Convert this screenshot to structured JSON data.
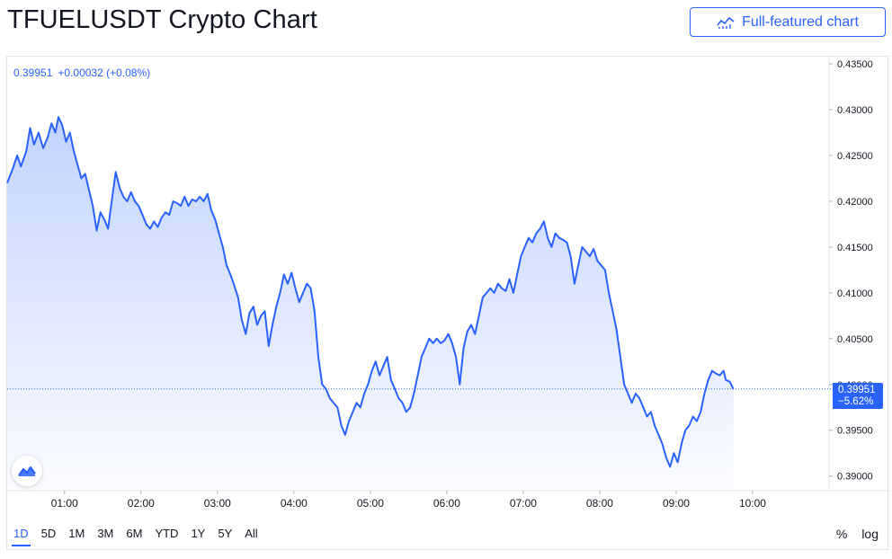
{
  "header": {
    "title": "TFUELUSDT Crypto Chart",
    "full_featured_label": "Full-featured chart"
  },
  "legend": {
    "price": "0.39951",
    "change": "+0.00032 (+0.08%)"
  },
  "price_badge": {
    "price": "0.39951",
    "change": "−5.62%"
  },
  "ranges": [
    "1D",
    "5D",
    "1M",
    "3M",
    "6M",
    "YTD",
    "1Y",
    "5Y",
    "All"
  ],
  "active_range": "1D",
  "controls": {
    "percent": "%",
    "log": "log"
  },
  "colors": {
    "line": "#2962ff",
    "area_top": "#2962ff",
    "text": "#131722",
    "axis_text": "#131722",
    "border": "#e0e3eb"
  },
  "chart_data": {
    "type": "area",
    "x_ticks": [
      "01:00",
      "02:00",
      "03:00",
      "04:00",
      "05:00",
      "06:00",
      "07:00",
      "08:00",
      "09:00",
      "10:00"
    ],
    "y_ticks": [
      "0.39000",
      "0.39500",
      "0.40000",
      "0.40500",
      "0.41000",
      "0.41500",
      "0.42000",
      "0.42500",
      "0.43000",
      "0.43500"
    ],
    "ylim": [
      0.3884,
      0.4355
    ],
    "xlim_hours": [
      0.25,
      11.0
    ],
    "last_price": 0.39951,
    "series": [
      {
        "values": [
          [
            0.25,
            0.422
          ],
          [
            0.32,
            0.4235
          ],
          [
            0.38,
            0.425
          ],
          [
            0.43,
            0.4238
          ],
          [
            0.5,
            0.4255
          ],
          [
            0.55,
            0.428
          ],
          [
            0.6,
            0.4262
          ],
          [
            0.66,
            0.4275
          ],
          [
            0.72,
            0.4258
          ],
          [
            0.78,
            0.427
          ],
          [
            0.83,
            0.4285
          ],
          [
            0.88,
            0.4275
          ],
          [
            0.92,
            0.4292
          ],
          [
            0.97,
            0.4283
          ],
          [
            1.02,
            0.4265
          ],
          [
            1.07,
            0.4275
          ],
          [
            1.12,
            0.4255
          ],
          [
            1.17,
            0.424
          ],
          [
            1.22,
            0.4225
          ],
          [
            1.27,
            0.423
          ],
          [
            1.32,
            0.4212
          ],
          [
            1.37,
            0.4195
          ],
          [
            1.42,
            0.4168
          ],
          [
            1.47,
            0.4188
          ],
          [
            1.52,
            0.418
          ],
          [
            1.57,
            0.417
          ],
          [
            1.62,
            0.4202
          ],
          [
            1.67,
            0.4232
          ],
          [
            1.72,
            0.4215
          ],
          [
            1.77,
            0.4205
          ],
          [
            1.82,
            0.42
          ],
          [
            1.87,
            0.421
          ],
          [
            1.92,
            0.42
          ],
          [
            1.97,
            0.4195
          ],
          [
            2.02,
            0.4185
          ],
          [
            2.07,
            0.4175
          ],
          [
            2.12,
            0.417
          ],
          [
            2.17,
            0.4178
          ],
          [
            2.22,
            0.4172
          ],
          [
            2.27,
            0.4182
          ],
          [
            2.32,
            0.4188
          ],
          [
            2.37,
            0.4185
          ],
          [
            2.42,
            0.42
          ],
          [
            2.47,
            0.4198
          ],
          [
            2.52,
            0.4195
          ],
          [
            2.57,
            0.4205
          ],
          [
            2.62,
            0.4195
          ],
          [
            2.67,
            0.4202
          ],
          [
            2.72,
            0.42
          ],
          [
            2.77,
            0.4205
          ],
          [
            2.82,
            0.42
          ],
          [
            2.87,
            0.4208
          ],
          [
            2.92,
            0.419
          ],
          [
            2.97,
            0.418
          ],
          [
            3.02,
            0.4165
          ],
          [
            3.07,
            0.415
          ],
          [
            3.12,
            0.413
          ],
          [
            3.17,
            0.412
          ],
          [
            3.22,
            0.4108
          ],
          [
            3.27,
            0.4095
          ],
          [
            3.32,
            0.407
          ],
          [
            3.37,
            0.4055
          ],
          [
            3.42,
            0.4078
          ],
          [
            3.47,
            0.4085
          ],
          [
            3.52,
            0.4065
          ],
          [
            3.57,
            0.4075
          ],
          [
            3.62,
            0.408
          ],
          [
            3.67,
            0.4042
          ],
          [
            3.72,
            0.4065
          ],
          [
            3.77,
            0.4085
          ],
          [
            3.82,
            0.41
          ],
          [
            3.87,
            0.412
          ],
          [
            3.92,
            0.411
          ],
          [
            3.97,
            0.4122
          ],
          [
            4.02,
            0.4105
          ],
          [
            4.07,
            0.409
          ],
          [
            4.12,
            0.41
          ],
          [
            4.17,
            0.411
          ],
          [
            4.22,
            0.4105
          ],
          [
            4.27,
            0.408
          ],
          [
            4.32,
            0.403
          ],
          [
            4.37,
            0.4
          ],
          [
            4.42,
            0.3995
          ],
          [
            4.47,
            0.3985
          ],
          [
            4.52,
            0.398
          ],
          [
            4.57,
            0.3975
          ],
          [
            4.62,
            0.3955
          ],
          [
            4.67,
            0.3945
          ],
          [
            4.72,
            0.396
          ],
          [
            4.77,
            0.397
          ],
          [
            4.82,
            0.398
          ],
          [
            4.87,
            0.3975
          ],
          [
            4.92,
            0.399
          ],
          [
            4.97,
            0.4
          ],
          [
            5.02,
            0.4015
          ],
          [
            5.07,
            0.4025
          ],
          [
            5.12,
            0.401
          ],
          [
            5.17,
            0.402
          ],
          [
            5.22,
            0.403
          ],
          [
            5.27,
            0.4005
          ],
          [
            5.32,
            0.3995
          ],
          [
            5.37,
            0.3985
          ],
          [
            5.42,
            0.398
          ],
          [
            5.47,
            0.397
          ],
          [
            5.52,
            0.3975
          ],
          [
            5.57,
            0.399
          ],
          [
            5.62,
            0.401
          ],
          [
            5.67,
            0.403
          ],
          [
            5.72,
            0.404
          ],
          [
            5.77,
            0.405
          ],
          [
            5.82,
            0.4045
          ],
          [
            5.87,
            0.405
          ],
          [
            5.92,
            0.4045
          ],
          [
            5.97,
            0.4048
          ],
          [
            6.02,
            0.4055
          ],
          [
            6.07,
            0.4045
          ],
          [
            6.12,
            0.403
          ],
          [
            6.17,
            0.4
          ],
          [
            6.22,
            0.404
          ],
          [
            6.27,
            0.4058
          ],
          [
            6.32,
            0.4065
          ],
          [
            6.37,
            0.4055
          ],
          [
            6.42,
            0.4075
          ],
          [
            6.47,
            0.4095
          ],
          [
            6.52,
            0.41
          ],
          [
            6.57,
            0.4105
          ],
          [
            6.62,
            0.41
          ],
          [
            6.67,
            0.411
          ],
          [
            6.72,
            0.4105
          ],
          [
            6.77,
            0.4102
          ],
          [
            6.82,
            0.4115
          ],
          [
            6.87,
            0.41
          ],
          [
            6.92,
            0.412
          ],
          [
            6.97,
            0.414
          ],
          [
            7.02,
            0.415
          ],
          [
            7.07,
            0.416
          ],
          [
            7.12,
            0.4155
          ],
          [
            7.17,
            0.4165
          ],
          [
            7.22,
            0.417
          ],
          [
            7.27,
            0.4178
          ],
          [
            7.32,
            0.416
          ],
          [
            7.37,
            0.415
          ],
          [
            7.42,
            0.4165
          ],
          [
            7.47,
            0.416
          ],
          [
            7.52,
            0.4158
          ],
          [
            7.57,
            0.4155
          ],
          [
            7.62,
            0.414
          ],
          [
            7.67,
            0.411
          ],
          [
            7.72,
            0.413
          ],
          [
            7.77,
            0.415
          ],
          [
            7.82,
            0.4145
          ],
          [
            7.87,
            0.414
          ],
          [
            7.92,
            0.4148
          ],
          [
            7.97,
            0.4135
          ],
          [
            8.02,
            0.413
          ],
          [
            8.07,
            0.4125
          ],
          [
            8.12,
            0.41
          ],
          [
            8.17,
            0.408
          ],
          [
            8.22,
            0.406
          ],
          [
            8.27,
            0.403
          ],
          [
            8.32,
            0.4
          ],
          [
            8.37,
            0.399
          ],
          [
            8.42,
            0.398
          ],
          [
            8.47,
            0.399
          ],
          [
            8.52,
            0.3985
          ],
          [
            8.57,
            0.3975
          ],
          [
            8.62,
            0.3965
          ],
          [
            8.67,
            0.397
          ],
          [
            8.72,
            0.3955
          ],
          [
            8.77,
            0.3945
          ],
          [
            8.82,
            0.3935
          ],
          [
            8.87,
            0.392
          ],
          [
            8.92,
            0.391
          ],
          [
            8.97,
            0.3925
          ],
          [
            9.02,
            0.3915
          ],
          [
            9.07,
            0.3935
          ],
          [
            9.12,
            0.395
          ],
          [
            9.17,
            0.3955
          ],
          [
            9.22,
            0.3965
          ],
          [
            9.27,
            0.396
          ],
          [
            9.32,
            0.397
          ],
          [
            9.37,
            0.399
          ],
          [
            9.42,
            0.4005
          ],
          [
            9.47,
            0.4015
          ],
          [
            9.52,
            0.4012
          ],
          [
            9.57,
            0.401
          ],
          [
            9.62,
            0.4015
          ],
          [
            9.65,
            0.4005
          ],
          [
            9.7,
            0.4003
          ],
          [
            9.75,
            0.3995
          ]
        ]
      }
    ]
  }
}
